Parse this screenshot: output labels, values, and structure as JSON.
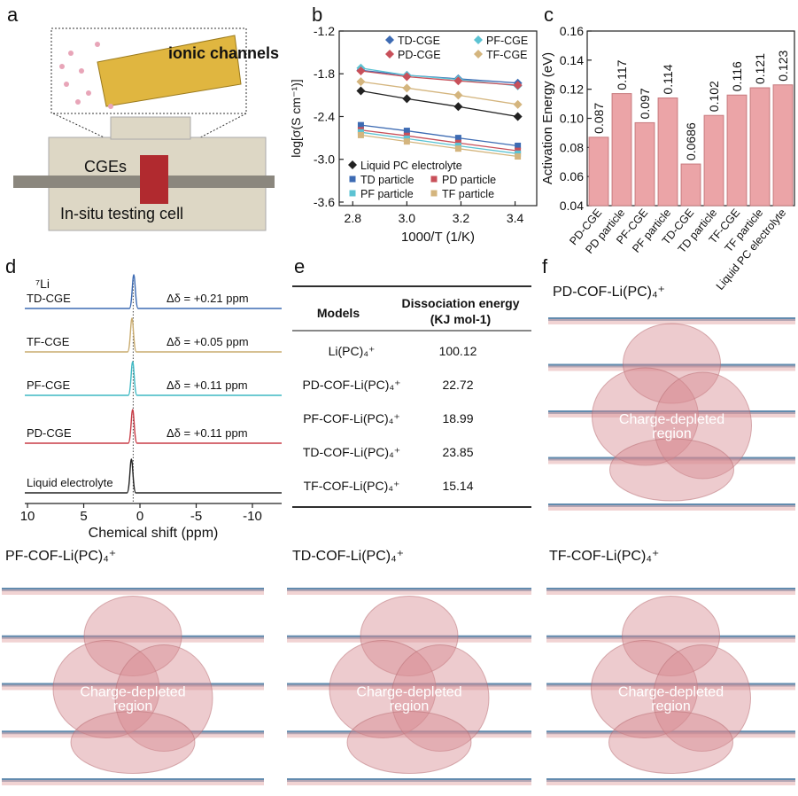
{
  "panel_labels": [
    "a",
    "b",
    "c",
    "d",
    "e",
    "f"
  ],
  "illustration": {
    "channel_label": "ionic channels",
    "cge_label": "CGEs",
    "cell_label": "In-situ testing cell"
  },
  "chart_data": [
    {
      "type": "line",
      "x_label": "1000/T (1/K)",
      "y_label": "log[σ(S cm⁻¹)]",
      "x": [
        2.83,
        3.0,
        3.19,
        3.41
      ],
      "xlim": [
        2.75,
        3.48
      ],
      "ylim": [
        -3.65,
        -1.2
      ],
      "xticks": [
        2.8,
        {
          "value": 3,
          "label": "3.0"
        },
        3.2,
        3.4
      ],
      "yticks": [
        -3.6,
        {
          "value": -3,
          "label": "-3.0"
        },
        -2.4,
        -1.8,
        -1.2
      ],
      "series": [
        {
          "name": "TD-CGE",
          "color": "#3d6bb3",
          "marker": "diamond",
          "values": [
            -1.75,
            -1.82,
            -1.87,
            -1.93
          ]
        },
        {
          "name": "PF-CGE",
          "color": "#5cc3d3",
          "marker": "diamond",
          "values": [
            -1.72,
            -1.82,
            -1.88,
            -1.97
          ]
        },
        {
          "name": "PD-CGE",
          "color": "#c8505a",
          "marker": "diamond",
          "values": [
            -1.76,
            -1.84,
            -1.9,
            -1.96
          ]
        },
        {
          "name": "TF-CGE",
          "color": "#d4b57e",
          "marker": "diamond",
          "values": [
            -1.91,
            -2.0,
            -2.1,
            -2.23
          ]
        },
        {
          "name": "Liquid PC electrolyte",
          "color": "#222222",
          "marker": "diamond",
          "values": [
            -2.04,
            -2.15,
            -2.26,
            -2.4
          ]
        },
        {
          "name": "TD particle",
          "color": "#3d6bb3",
          "marker": "square",
          "values": [
            -2.52,
            -2.6,
            -2.7,
            -2.81
          ]
        },
        {
          "name": "PD particle",
          "color": "#c8505a",
          "marker": "square",
          "values": [
            -2.59,
            -2.67,
            -2.77,
            -2.88
          ]
        },
        {
          "name": "PF particle",
          "color": "#5cc3d3",
          "marker": "square",
          "values": [
            -2.62,
            -2.71,
            -2.81,
            -2.92
          ]
        },
        {
          "name": "TF particle",
          "color": "#d4b57e",
          "marker": "square",
          "values": [
            -2.66,
            -2.75,
            -2.85,
            -2.96
          ]
        }
      ]
    },
    {
      "type": "bar",
      "y_label": "Activation Energy (eV)",
      "color": "#eba4a7",
      "categories": [
        "PD-CGE",
        "PD particle",
        "PF-CGE",
        "PF particle",
        "TD-CGE",
        "TD particle",
        "TF-CGE",
        "TF particle",
        "Liquid PC electrolyte"
      ],
      "values": [
        0.087,
        0.117,
        0.097,
        0.114,
        0.0686,
        0.102,
        0.116,
        0.121,
        0.123
      ],
      "ylim": [
        0.04,
        0.16
      ],
      "yticks": [
        0.04,
        0.06,
        0.08,
        {
          "value": 0.1,
          "label": "0.10"
        },
        0.12,
        0.14,
        0.16
      ]
    },
    {
      "type": "spectra",
      "nucleus": "⁷Li",
      "x_label": "Chemical shift (ppm)",
      "xlim": [
        10.24,
        -12.6
      ],
      "xticks": [
        10,
        5,
        0,
        -5,
        -10
      ],
      "series": [
        {
          "name": "TD-CGE",
          "color": "#3d6bb3",
          "peak": 0.55,
          "annotation": "Δδ = +0.21 ppm"
        },
        {
          "name": "TF-CGE",
          "color": "#c9ab6e",
          "peak": 0.71,
          "annotation": "Δδ = +0.05 ppm"
        },
        {
          "name": "PF-CGE",
          "color": "#3fb9c4",
          "peak": 0.65,
          "annotation": "Δδ = +0.11 ppm"
        },
        {
          "name": "PD-CGE",
          "color": "#c83c46",
          "peak": 0.65,
          "annotation": "Δδ = +0.11 ppm"
        },
        {
          "name": "Liquid electrolyte",
          "color": "#222222",
          "peak": 0.76
        }
      ]
    }
  ],
  "table": {
    "header": [
      "Models",
      "Dissociation energy",
      "(KJ mol-1)"
    ],
    "rows": [
      [
        "Li(PC)₄⁺",
        "100.12"
      ],
      [
        "PD-COF-Li(PC)₄⁺",
        "22.72"
      ],
      [
        "PF-COF-Li(PC)₄⁺",
        "18.99"
      ],
      [
        "TD-COF-Li(PC)₄⁺",
        "23.85"
      ],
      [
        "TF-COF-Li(PC)₄⁺",
        "15.14"
      ]
    ]
  },
  "renderings": [
    {
      "title": "PD-COF-Li(PC)₄⁺",
      "label": [
        "Charge-depleted",
        "region"
      ]
    },
    {
      "title": "PF-COF-Li(PC)₄⁺",
      "label": [
        "Charge-depleted",
        "region"
      ]
    },
    {
      "title": "TD-COF-Li(PC)₄⁺",
      "label": [
        "Charge-depleted",
        "region"
      ]
    },
    {
      "title": "TF-COF-Li(PC)₄⁺",
      "label": [
        "Charge-depleted",
        "region"
      ]
    }
  ]
}
